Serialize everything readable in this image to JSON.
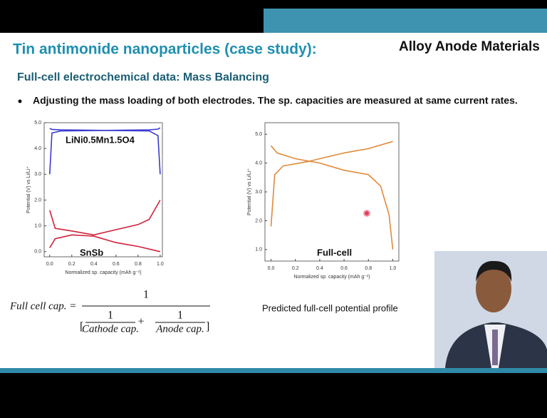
{
  "header": {
    "title": "Tin antimonide nanoparticles (case study):",
    "topic": "Alloy Anode Materials"
  },
  "subtitle": "Full-cell electrochemical data: Mass Balancing",
  "bullet": "Adjusting the mass loading of both electrodes. The sp. capacities are measured at same current rates.",
  "formula": {
    "lhs": "Full cell cap. =",
    "numerator": "1",
    "open_bracket": "[",
    "term1_num": "1",
    "term1_den": "Cathode cap.",
    "plus": "+",
    "term2_num": "1",
    "term2_den": "Anode cap.",
    "close_bracket": "]"
  },
  "caption": "Predicted full-cell potential profile",
  "chart_data": [
    {
      "type": "line",
      "xlabel": "Normalized sp. capacity (mAh g⁻¹)",
      "ylabel": "Potential (V) vs Li/Li⁺",
      "annotations": [
        "LiNi0.5Mn1.5O4",
        "SnSb"
      ],
      "xlim": [
        -0.05,
        1.02
      ],
      "ylim": [
        -0.2,
        5.0
      ],
      "xticks": [
        {
          "value": 0,
          "label": "0.0"
        },
        0.2,
        0.4,
        0.6,
        0.8,
        {
          "value": 1,
          "label": "1.0"
        }
      ],
      "yticks": [
        {
          "value": 0,
          "label": "0.0"
        },
        {
          "value": 1,
          "label": "1.0"
        },
        {
          "value": 2,
          "label": "2.0"
        },
        {
          "value": 3,
          "label": "3.0"
        },
        {
          "value": 4,
          "label": "4.0"
        },
        {
          "value": 5,
          "label": "5.0"
        }
      ],
      "series": [
        {
          "color": "#3a3ad0",
          "x": [
            0,
            0.02,
            0.1,
            0.5,
            0.9,
            0.98,
            1.0
          ],
          "values": [
            3.0,
            4.6,
            4.68,
            4.7,
            4.72,
            4.75,
            4.8
          ]
        },
        {
          "color": "#3a3ad0",
          "x": [
            0,
            0.02,
            0.1,
            0.5,
            0.9,
            0.98,
            1.0
          ],
          "values": [
            4.78,
            4.74,
            4.72,
            4.7,
            4.68,
            4.5,
            3.0
          ]
        },
        {
          "color": "#d0203a",
          "x": [
            0,
            0.05,
            0.2,
            0.4,
            0.6,
            0.8,
            0.9,
            1.0
          ],
          "values": [
            1.6,
            0.9,
            0.8,
            0.65,
            0.85,
            1.05,
            1.25,
            2.0
          ]
        },
        {
          "color": "#d0203a",
          "x": [
            0,
            0.05,
            0.2,
            0.4,
            0.6,
            0.8,
            1.0
          ],
          "values": [
            0.15,
            0.5,
            0.65,
            0.6,
            0.35,
            0.2,
            0.0
          ]
        }
      ]
    },
    {
      "type": "line",
      "xlabel": "Normalized sp. capacity (mAh g⁻¹)",
      "ylabel": "Potential (V) vs Li/Li⁺",
      "annotations": [
        "Full-cell"
      ],
      "xlim": [
        -0.05,
        1.05
      ],
      "ylim": [
        0.6,
        5.4
      ],
      "xticks": [
        {
          "value": 0,
          "label": "0.0"
        },
        0.2,
        0.4,
        0.6,
        0.8,
        {
          "value": 1,
          "label": "1.0"
        }
      ],
      "yticks": [
        {
          "value": 1,
          "label": "1.0"
        },
        {
          "value": 2,
          "label": "2.0"
        },
        {
          "value": 3,
          "label": "3.0"
        },
        {
          "value": 4,
          "label": "4.0"
        },
        {
          "value": 5,
          "label": "5.0"
        }
      ],
      "series": [
        {
          "color": "#e08a3a",
          "x": [
            0,
            0.03,
            0.1,
            0.3,
            0.6,
            0.8,
            1.0
          ],
          "values": [
            1.8,
            3.6,
            3.9,
            4.05,
            4.35,
            4.5,
            4.75
          ]
        },
        {
          "color": "#e08a3a",
          "x": [
            0,
            0.05,
            0.2,
            0.4,
            0.6,
            0.8,
            0.9,
            0.97,
            1.0
          ],
          "values": [
            4.6,
            4.35,
            4.15,
            4.0,
            3.75,
            3.6,
            3.2,
            2.2,
            1.0
          ]
        }
      ]
    }
  ]
}
